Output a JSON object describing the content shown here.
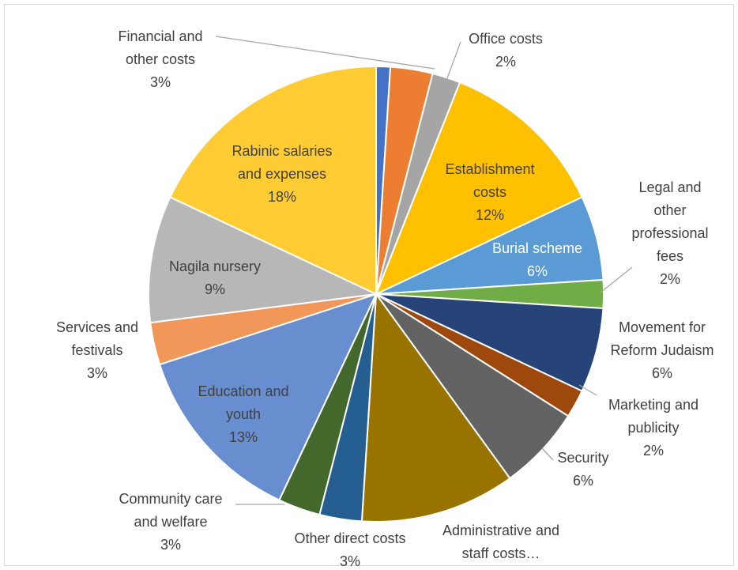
{
  "chart_data": {
    "type": "pie",
    "title": "",
    "start_angle_deg": 0,
    "direction": "clockwise",
    "slices": [
      {
        "id": "small-blue",
        "lines": [],
        "value": 1,
        "color": "#4472c4"
      },
      {
        "id": "financial",
        "lines": [
          "Financial and",
          "other costs",
          "3%"
        ],
        "value": 3,
        "color": "#ed7d31"
      },
      {
        "id": "office",
        "lines": [
          "Office costs",
          "2%"
        ],
        "value": 2,
        "color": "#a5a5a5"
      },
      {
        "id": "establishment",
        "lines": [
          "Establishment",
          "costs",
          "12%"
        ],
        "value": 12,
        "color": "#ffc000"
      },
      {
        "id": "burial",
        "lines": [
          "Burial scheme",
          "6%"
        ],
        "value": 6,
        "color": "#5b9bd5"
      },
      {
        "id": "legal",
        "lines": [
          "Legal and",
          "other",
          "professional",
          "fees",
          "2%"
        ],
        "value": 2,
        "color": "#70ad47"
      },
      {
        "id": "movement",
        "lines": [
          "Movement for",
          "Reform Judaism",
          "6%"
        ],
        "value": 6,
        "color": "#264478"
      },
      {
        "id": "marketing",
        "lines": [
          "Marketing and",
          "publicity",
          "2%"
        ],
        "value": 2,
        "color": "#9e480e"
      },
      {
        "id": "security",
        "lines": [
          "Security",
          "6%"
        ],
        "value": 6,
        "color": "#636363"
      },
      {
        "id": "administrative",
        "lines": [
          "Administrative and",
          "staff costs…"
        ],
        "value": 11,
        "color": "#997300"
      },
      {
        "id": "other-direct",
        "lines": [
          "Other direct costs",
          "3%"
        ],
        "value": 3,
        "color": "#255e91"
      },
      {
        "id": "community",
        "lines": [
          "Community care",
          "and welfare",
          "3%"
        ],
        "value": 3,
        "color": "#43682b"
      },
      {
        "id": "education",
        "lines": [
          "Education and",
          "youth",
          "13%"
        ],
        "value": 13,
        "color": "#698ed0"
      },
      {
        "id": "services",
        "lines": [
          "Services and",
          "festivals",
          "3%"
        ],
        "value": 3,
        "color": "#f1975a"
      },
      {
        "id": "nagila",
        "lines": [
          "Nagila nursery",
          "9%"
        ],
        "value": 9,
        "color": "#b7b7b7"
      },
      {
        "id": "rabinic",
        "lines": [
          "Rabinic salaries",
          "and expenses",
          "18%"
        ],
        "value": 18,
        "color": "#ffcd33"
      }
    ]
  }
}
